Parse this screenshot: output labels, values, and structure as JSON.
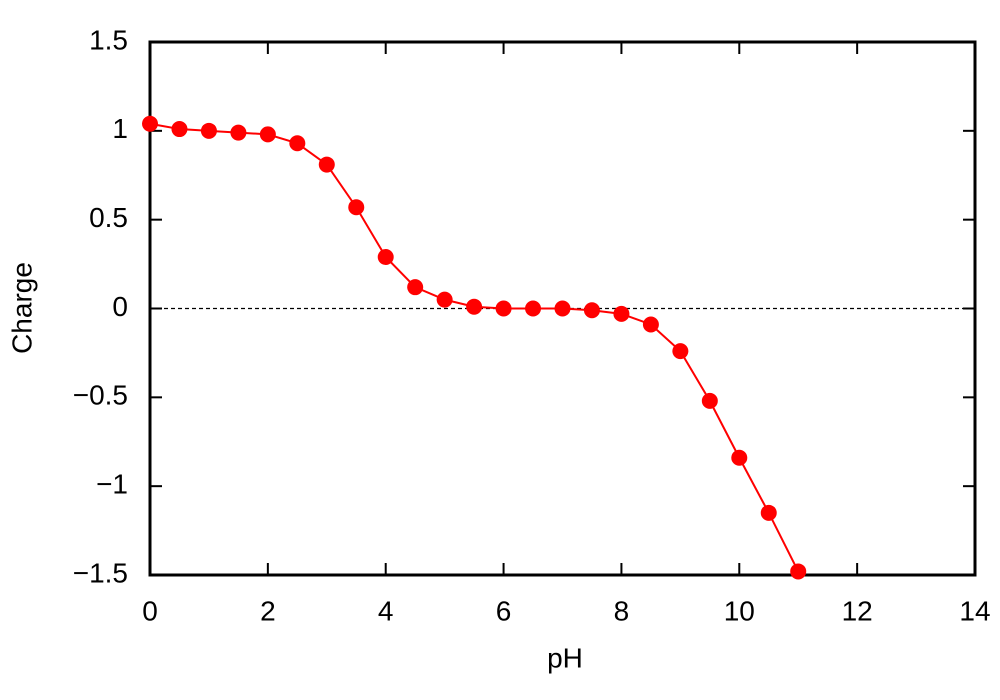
{
  "chart_data": {
    "type": "line",
    "x_label": "pH",
    "y_label": "Charge",
    "x": [
      0,
      0.5,
      1,
      1.5,
      2,
      2.5,
      3,
      3.5,
      4,
      4.5,
      5,
      5.5,
      6,
      6.5,
      7,
      7.5,
      8,
      8.5,
      9,
      9.5,
      10,
      10.5,
      11
    ],
    "series": [
      {
        "color": "#ff0000",
        "values": [
          1.04,
          1.01,
          1.0,
          0.99,
          0.98,
          0.93,
          0.81,
          0.57,
          0.29,
          0.12,
          0.05,
          0.01,
          0,
          0,
          0,
          -0.01,
          -0.03,
          -0.09,
          -0.24,
          -0.52,
          -0.84,
          -1.15,
          -1.48
        ]
      }
    ],
    "xlim": [
      0,
      14
    ],
    "xticks": [
      0,
      2,
      4,
      6,
      8,
      10,
      12,
      14
    ],
    "ylim": [
      -1.5,
      1.5
    ],
    "yticks": [
      {
        "value": -1.5,
        "label": "−1.5"
      },
      {
        "value": -1,
        "label": "−1"
      },
      {
        "value": -0.5,
        "label": "−0.5"
      },
      0,
      0.5,
      1,
      1.5
    ],
    "zero_line": true,
    "markers": true
  }
}
